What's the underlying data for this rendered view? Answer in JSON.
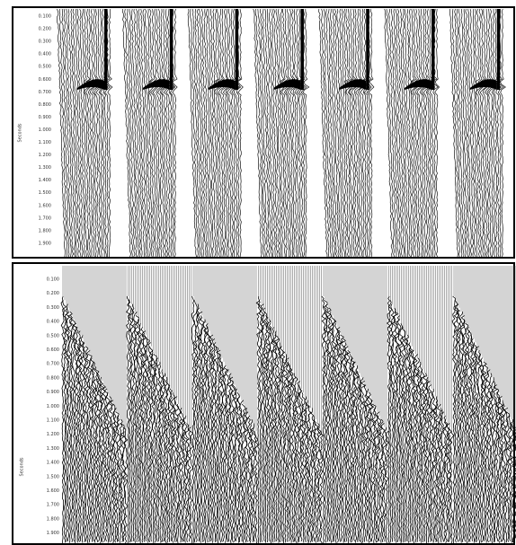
{
  "panels": [
    {
      "axis_label": "Seconds",
      "ticks": [
        "0.100",
        "0.200",
        "0.300",
        "0.400",
        "0.500",
        "0.600",
        "0.700",
        "0.800",
        "0.900",
        "1.000",
        "1.100",
        "1.200",
        "1.300",
        "1.400",
        "1.500",
        "1.600",
        "1.700",
        "1.800",
        "1.900"
      ]
    },
    {
      "axis_label": "Seconds",
      "ticks": [
        "0.100",
        "0.200",
        "0.300",
        "0.400",
        "0.500",
        "0.600",
        "0.700",
        "0.800",
        "0.900",
        "1.000",
        "1.100",
        "1.200",
        "1.300",
        "1.400",
        "1.500",
        "1.600",
        "1.700",
        "1.800",
        "1.900"
      ]
    }
  ]
}
